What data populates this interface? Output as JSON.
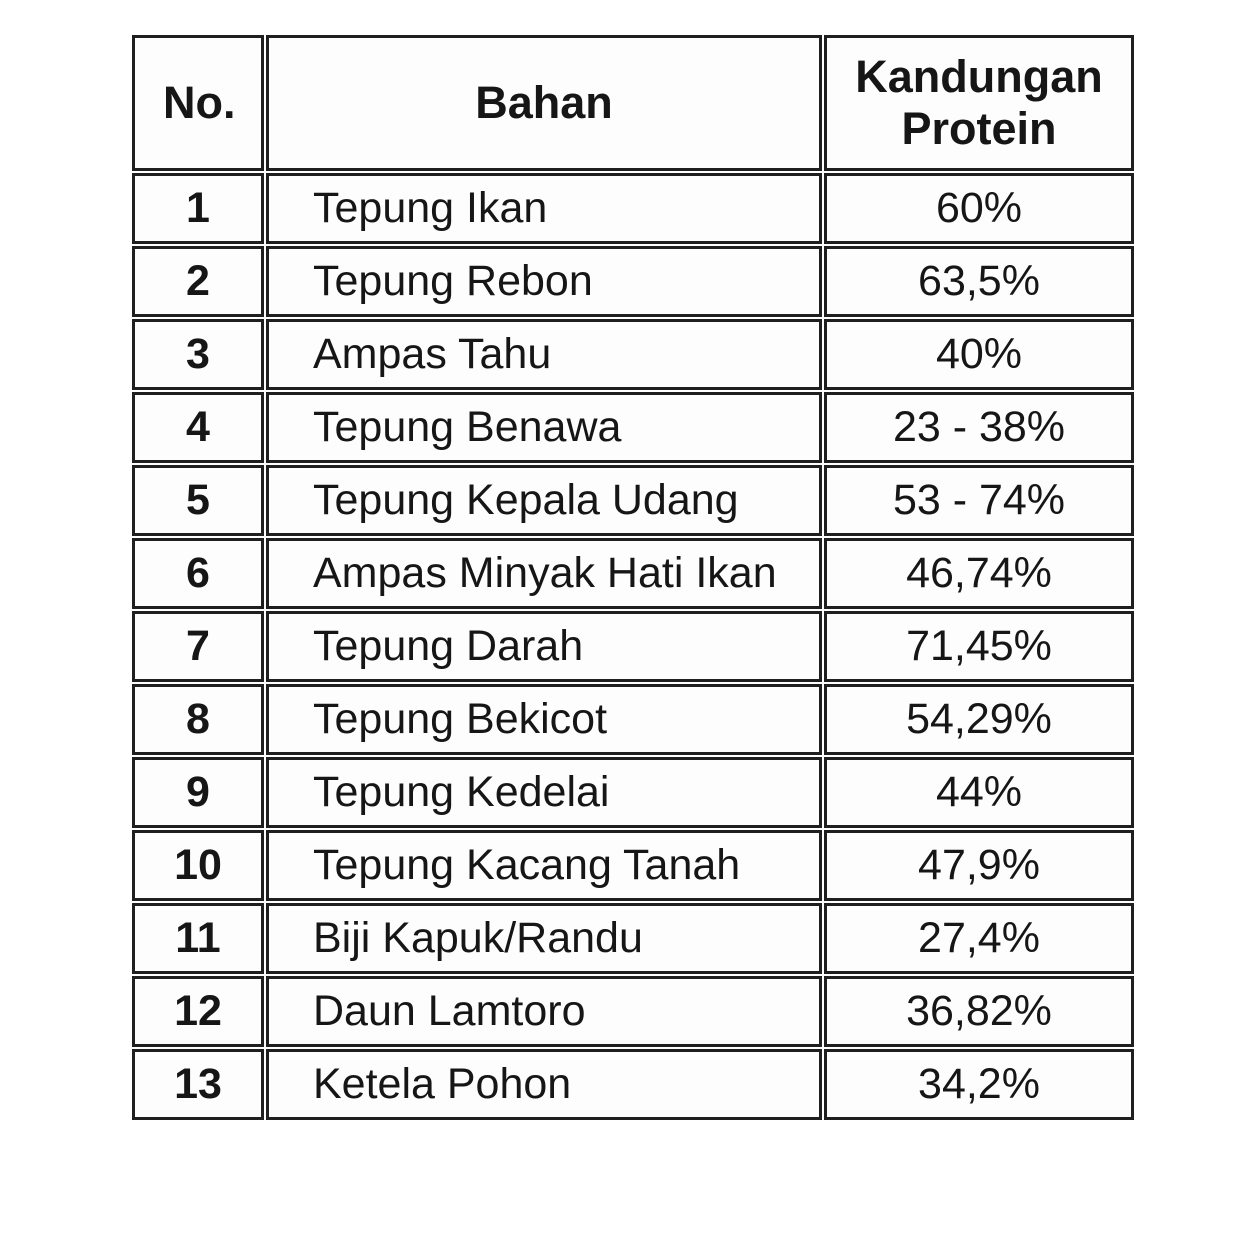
{
  "chart_data": {
    "type": "table",
    "title": "",
    "columns": [
      {
        "key": "no",
        "label": "No."
      },
      {
        "key": "bahan",
        "label": "Bahan"
      },
      {
        "key": "protein",
        "label": "Kandungan Protein"
      }
    ],
    "rows": [
      {
        "no": "1",
        "bahan": "Tepung Ikan",
        "protein": "60%"
      },
      {
        "no": "2",
        "bahan": "Tepung Rebon",
        "protein": "63,5%"
      },
      {
        "no": "3",
        "bahan": "Ampas Tahu",
        "protein": "40%"
      },
      {
        "no": "4",
        "bahan": "Tepung Benawa",
        "protein": "23 - 38%"
      },
      {
        "no": "5",
        "bahan": "Tepung Kepala Udang",
        "protein": "53 - 74%"
      },
      {
        "no": "6",
        "bahan": "Ampas Minyak Hati Ikan",
        "protein": "46,74%"
      },
      {
        "no": "7",
        "bahan": "Tepung Darah",
        "protein": "71,45%"
      },
      {
        "no": "8",
        "bahan": "Tepung Bekicot",
        "protein": "54,29%"
      },
      {
        "no": "9",
        "bahan": "Tepung Kedelai",
        "protein": "44%"
      },
      {
        "no": "10",
        "bahan": "Tepung Kacang Tanah",
        "protein": "47,9%"
      },
      {
        "no": "11",
        "bahan": "Biji Kapuk/Randu",
        "protein": "27,4%"
      },
      {
        "no": "12",
        "bahan": "Daun Lamtoro",
        "protein": "36,82%"
      },
      {
        "no": "13",
        "bahan": "Ketela Pohon",
        "protein": "34,2%"
      }
    ]
  },
  "colors": {
    "border": "#1f1f1f",
    "text": "#161616",
    "background": "#ffffff"
  }
}
